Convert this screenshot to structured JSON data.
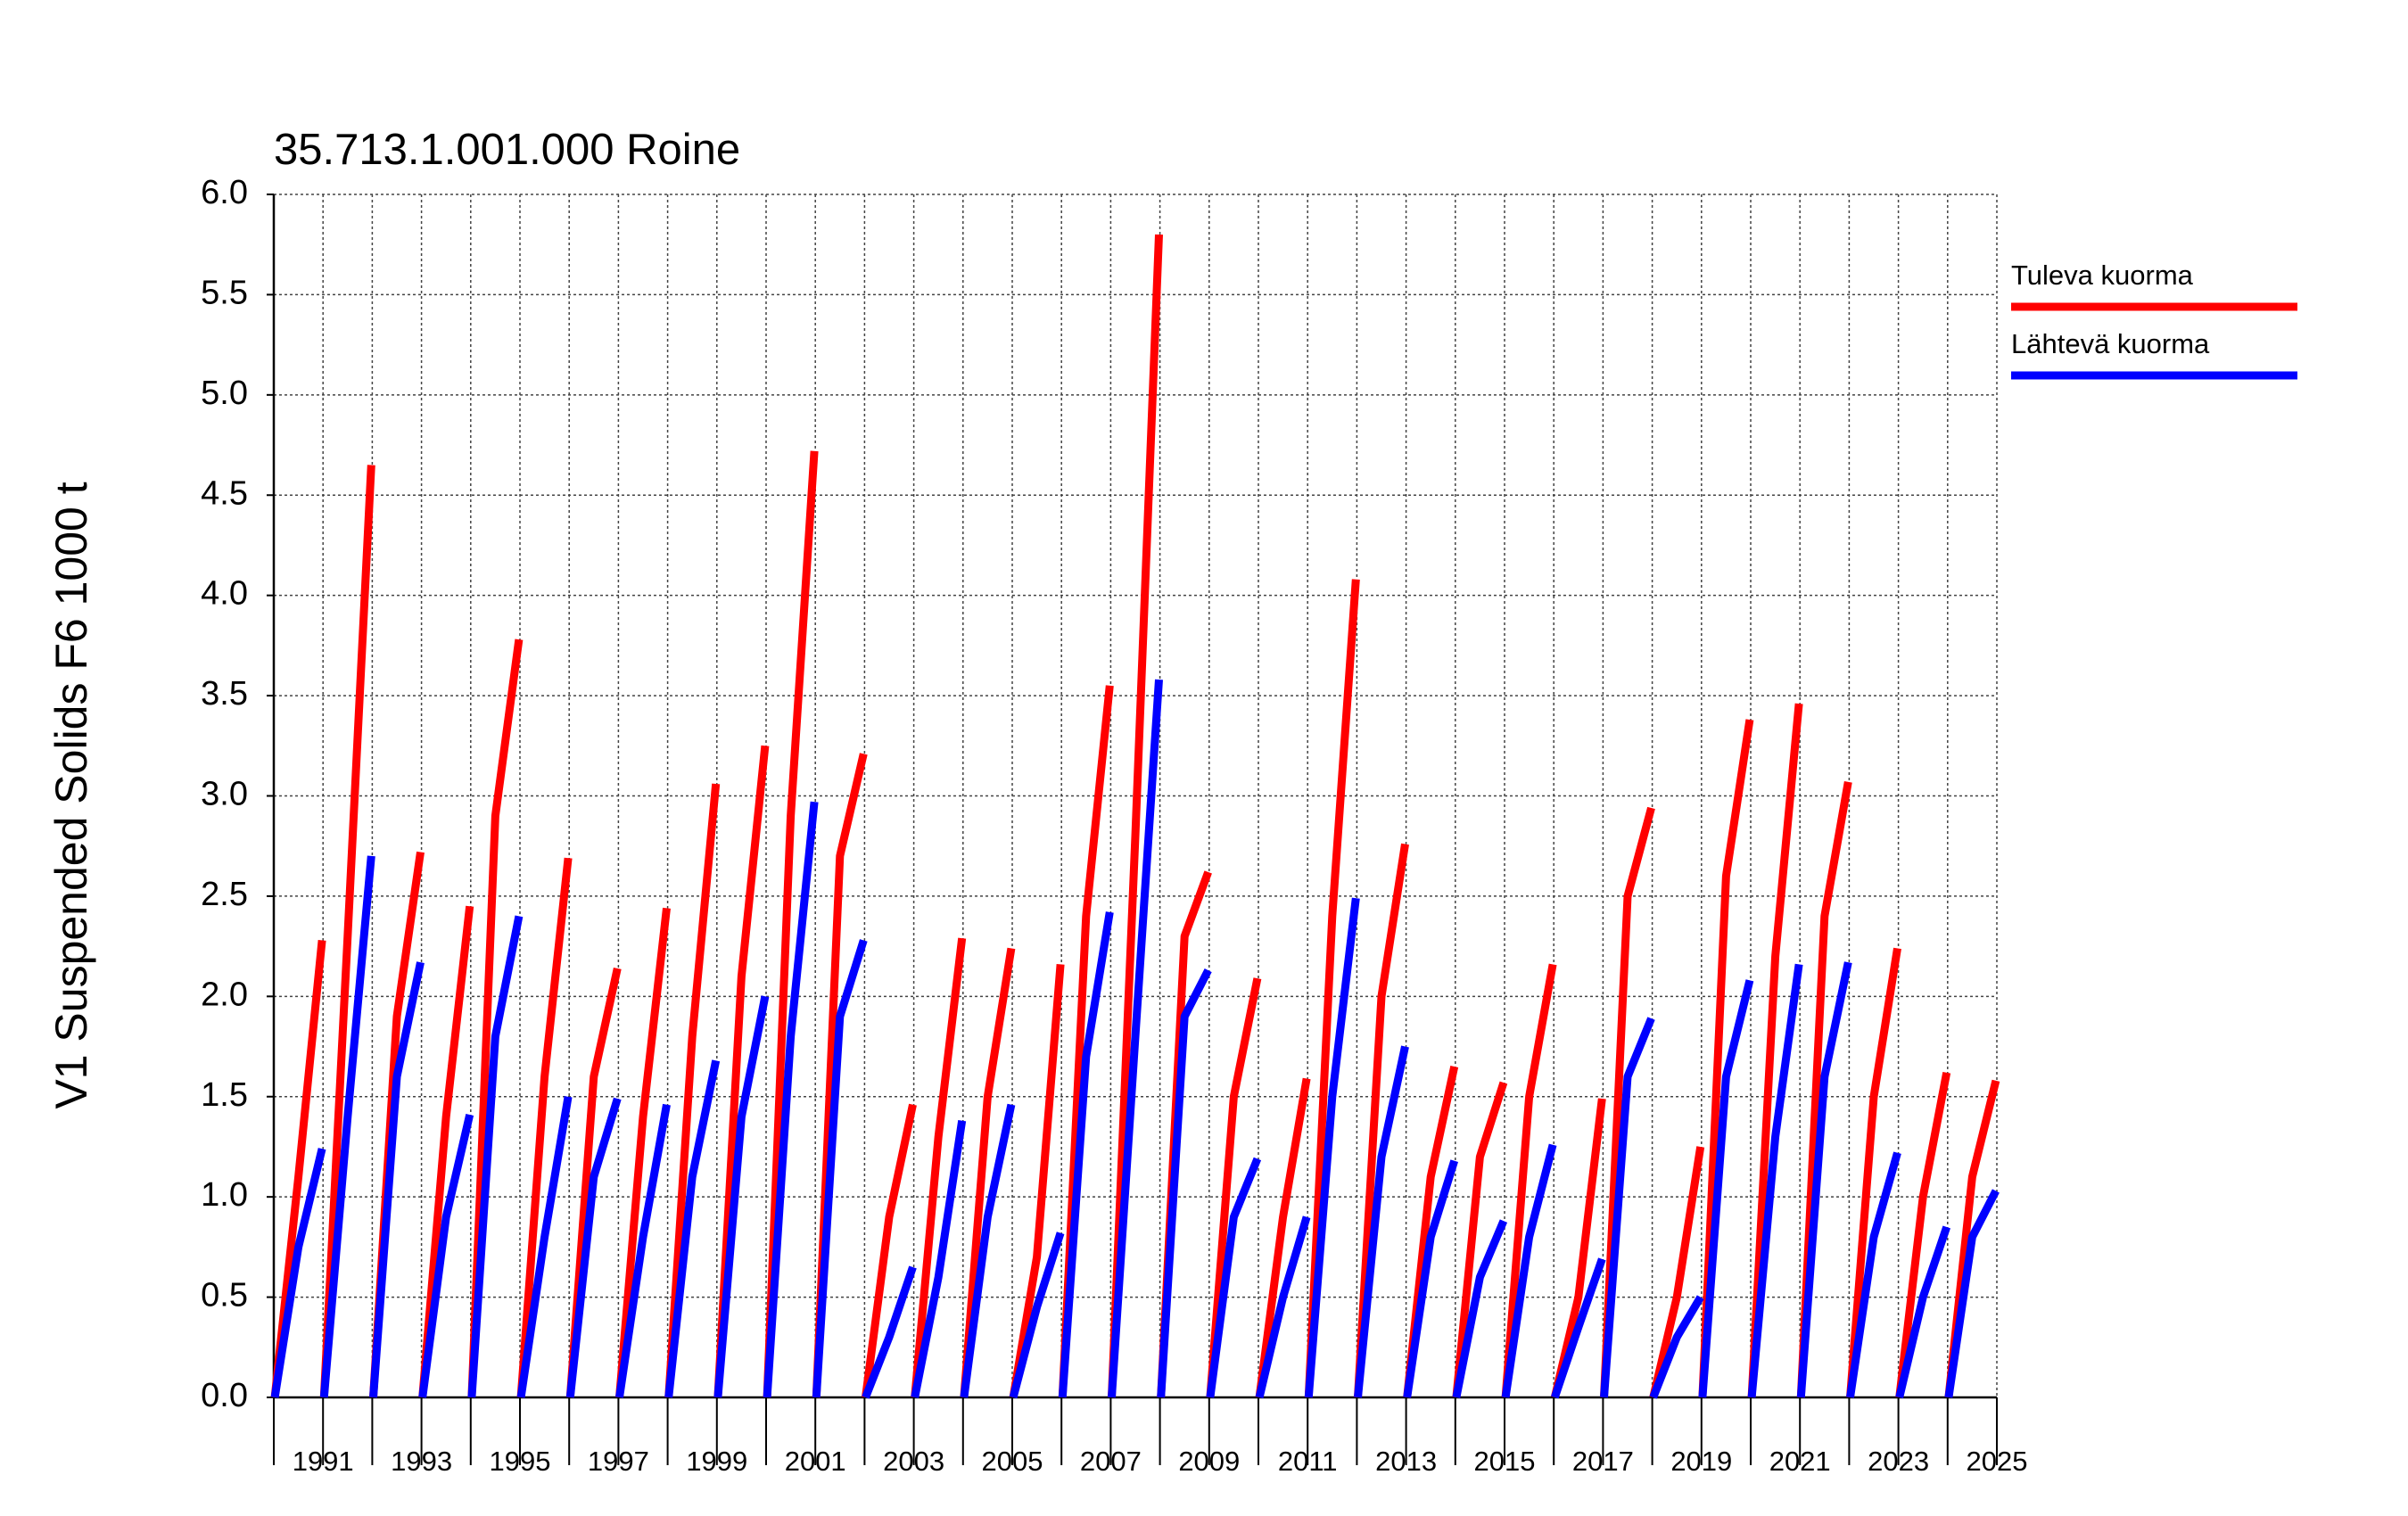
{
  "chart_data": {
    "type": "line",
    "title": "35.713.1.001.000 Roine",
    "y_label": "V1 Suspended Solids F6 1000 t",
    "xlim": [
      1990,
      2025
    ],
    "xticks": [
      1991,
      1993,
      1995,
      1997,
      1999,
      2001,
      2003,
      2005,
      2007,
      2009,
      2011,
      2013,
      2015,
      2017,
      2019,
      2021,
      2023,
      2025
    ],
    "xminorticks": [
      1990,
      1992,
      1994,
      1996,
      1998,
      2000,
      2002,
      2004,
      2006,
      2008,
      2010,
      2012,
      2014,
      2016,
      2018,
      2020,
      2022,
      2024
    ],
    "ylim": [
      0,
      6
    ],
    "yticks": [
      {
        "value": 0,
        "label": "0.0"
      },
      0.5,
      {
        "value": 1,
        "label": "1.0"
      },
      1.5,
      {
        "value": 2,
        "label": "2.0"
      },
      2.5,
      {
        "value": 3,
        "label": "3.0"
      },
      3.5,
      {
        "value": 4,
        "label": "4.0"
      },
      4.5,
      {
        "value": 5,
        "label": "5.0"
      },
      5.5,
      {
        "value": 6,
        "label": "6.0"
      }
    ],
    "grid": true,
    "legend": "right",
    "x": [
      1990.02,
      1990.5,
      1990.98,
      1991,
      1991.02,
      1991.5,
      1991.98,
      1992,
      1992.02,
      1992.5,
      1992.98,
      1993,
      1993.02,
      1993.5,
      1993.98,
      1994,
      1994.02,
      1994.5,
      1994.98,
      1995,
      1995.02,
      1995.5,
      1995.98,
      1996,
      1996.02,
      1996.5,
      1996.98,
      1997,
      1997.02,
      1997.5,
      1997.98,
      1998,
      1998.02,
      1998.5,
      1998.98,
      1999,
      1999.02,
      1999.5,
      1999.98,
      2000,
      2000.02,
      2000.5,
      2000.98,
      2001,
      2001.02,
      2001.5,
      2001.98,
      2002,
      2002.02,
      2002.5,
      2002.98,
      2003,
      2003.02,
      2003.5,
      2003.98,
      2004,
      2004.02,
      2004.5,
      2004.98,
      2005,
      2005.02,
      2005.5,
      2005.98,
      2006,
      2006.02,
      2006.5,
      2006.98,
      2007,
      2007.02,
      2007.5,
      2007.98,
      2008,
      2008.02,
      2008.5,
      2008.98,
      2009,
      2009.02,
      2009.5,
      2009.98,
      2010,
      2010.02,
      2010.5,
      2010.98,
      2011,
      2011.02,
      2011.5,
      2011.98,
      2012,
      2012.02,
      2012.5,
      2012.98,
      2013,
      2013.02,
      2013.5,
      2013.98,
      2014,
      2014.02,
      2014.5,
      2014.98,
      2015,
      2015.02,
      2015.5,
      2015.98,
      2016,
      2016.02,
      2016.5,
      2016.98,
      2017,
      2017.02,
      2017.5,
      2017.98,
      2018,
      2018.02,
      2018.5,
      2018.98,
      2019,
      2019.02,
      2019.5,
      2019.98,
      2020,
      2020.02,
      2020.5,
      2020.98,
      2021,
      2021.02,
      2021.5,
      2021.98,
      2022,
      2022.02,
      2022.5,
      2022.98,
      2023,
      2023.02,
      2023.5,
      2023.98,
      2024,
      2024.02,
      2024.5,
      2024.98,
      2025
    ],
    "series": [
      {
        "name": "Tuleva kuorma",
        "color": "#ff0000",
        "values": [
          0,
          1.1,
          2.28,
          null,
          0,
          2.3,
          4.65,
          null,
          0,
          1.9,
          2.72,
          null,
          0,
          1.4,
          2.45,
          null,
          0,
          2.9,
          3.78,
          null,
          0,
          1.6,
          2.69,
          null,
          0,
          1.6,
          2.14,
          null,
          0,
          1.4,
          2.44,
          null,
          0,
          1.8,
          3.06,
          null,
          0,
          2.1,
          3.25,
          null,
          0,
          2.9,
          4.72,
          null,
          0,
          2.7,
          3.21,
          null,
          0,
          0.9,
          1.46,
          null,
          0,
          1.3,
          2.29,
          null,
          0,
          1.5,
          2.24,
          null,
          0,
          0.7,
          2.16,
          null,
          0,
          2.4,
          3.55,
          null,
          0,
          2.8,
          5.8,
          null,
          0,
          2.3,
          2.62,
          null,
          0,
          1.5,
          2.09,
          null,
          0,
          0.9,
          1.59,
          null,
          0,
          2.4,
          4.08,
          null,
          0,
          2.0,
          2.76,
          null,
          0,
          1.1,
          1.65,
          null,
          0,
          1.2,
          1.57,
          null,
          0,
          1.5,
          2.16,
          null,
          0,
          0.5,
          1.49,
          null,
          0,
          2.5,
          2.94,
          null,
          0,
          0.5,
          1.25,
          null,
          0,
          2.6,
          3.38,
          null,
          0,
          2.2,
          3.46,
          null,
          0,
          2.4,
          3.07,
          null,
          0,
          1.5,
          2.24,
          null,
          0,
          1.0,
          1.62,
          null,
          0,
          1.1,
          1.58,
          null
        ]
      },
      {
        "name": "Lähtevä kuorma",
        "color": "#0000ff",
        "values": [
          0,
          0.75,
          1.24,
          null,
          0,
          1.4,
          2.7,
          null,
          0,
          1.6,
          2.17,
          null,
          0,
          0.9,
          1.41,
          null,
          0,
          1.8,
          2.4,
          null,
          0,
          0.8,
          1.5,
          null,
          0,
          1.1,
          1.49,
          null,
          0,
          0.8,
          1.46,
          null,
          0,
          1.1,
          1.68,
          null,
          0,
          1.4,
          2.0,
          null,
          0,
          1.8,
          2.97,
          null,
          0,
          1.9,
          2.28,
          null,
          0,
          0.3,
          0.65,
          null,
          0,
          0.6,
          1.38,
          null,
          0,
          0.9,
          1.46,
          null,
          0,
          0.45,
          0.82,
          null,
          0,
          1.7,
          2.42,
          null,
          0,
          1.8,
          3.58,
          null,
          0,
          1.9,
          2.13,
          null,
          0,
          0.9,
          1.19,
          null,
          0,
          0.5,
          0.9,
          null,
          0,
          1.5,
          2.49,
          null,
          0,
          1.2,
          1.75,
          null,
          0,
          0.8,
          1.18,
          null,
          0,
          0.6,
          0.88,
          null,
          0,
          0.8,
          1.26,
          null,
          0,
          0.35,
          0.69,
          null,
          0,
          1.6,
          1.89,
          null,
          0,
          0.3,
          0.5,
          null,
          0,
          1.6,
          2.08,
          null,
          0,
          1.3,
          2.16,
          null,
          0,
          1.6,
          2.17,
          null,
          0,
          0.8,
          1.22,
          null,
          0,
          0.5,
          0.85,
          null,
          0,
          0.8,
          1.03,
          null
        ]
      }
    ]
  }
}
